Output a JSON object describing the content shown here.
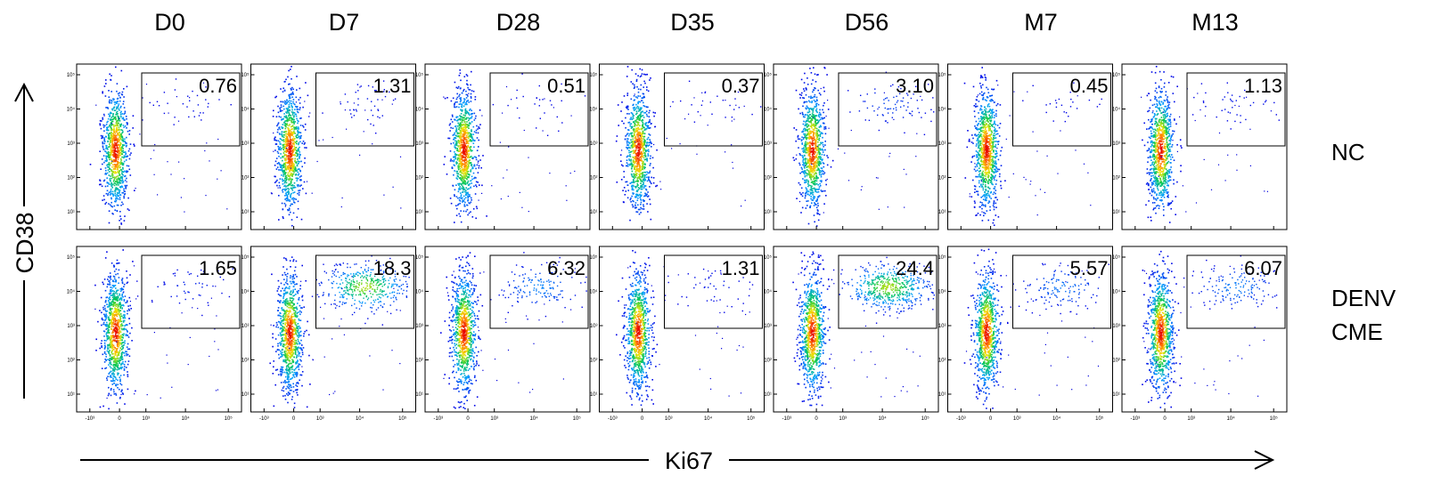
{
  "chart_data": {
    "type": "scatter",
    "subtype": "flow-cytometry-density-plot-grid",
    "columns": [
      "D0",
      "D7",
      "D28",
      "D35",
      "D56",
      "M7",
      "M13"
    ],
    "rows": [
      {
        "label": "NC",
        "gate_values": [
          "0.76",
          "1.31",
          "0.51",
          "0.37",
          "3.10",
          "0.45",
          "1.13"
        ]
      },
      {
        "label": "DENV CME",
        "gate_values": [
          "1.65",
          "18.3",
          "6.32",
          "1.31",
          "24.4",
          "5.57",
          "6.07"
        ]
      }
    ],
    "xlabel": "Ki67",
    "ylabel": "CD38",
    "x_ticks": [
      "-10³",
      "0",
      "10³",
      "10⁴",
      "10⁵"
    ],
    "y_ticks": [
      "10¹",
      "10²",
      "10³",
      "10⁴",
      "10⁵"
    ],
    "x_scale": "biexponential",
    "y_scale": "log",
    "gate": {
      "ki67_range": "10³ to 10⁵",
      "cd38_range": "~10³ to ~10⁵"
    }
  }
}
